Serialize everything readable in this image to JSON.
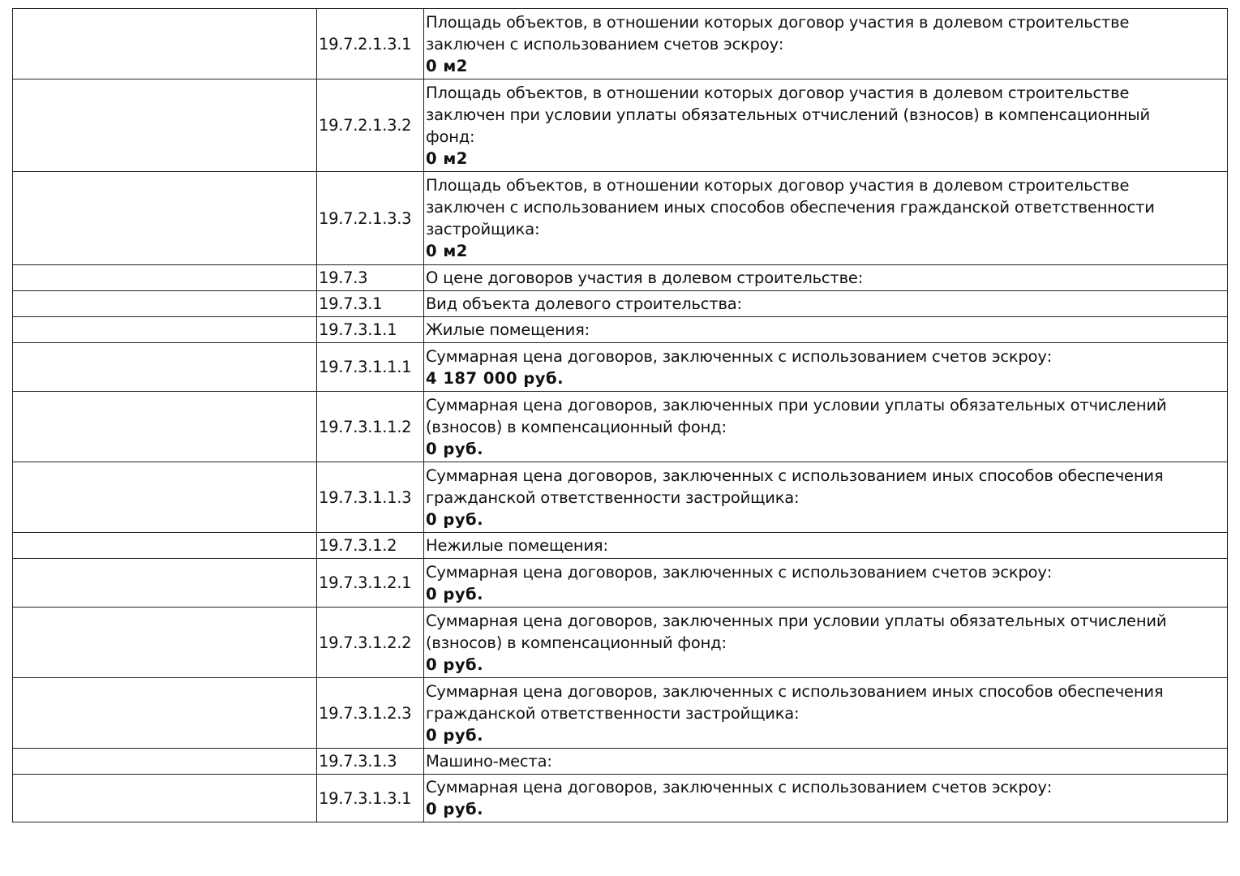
{
  "rows": [
    {
      "code": "19.7.2.1.3.1",
      "lines": [
        "Площадь объектов, в отношении которых договор участия в долевом строительстве",
        "заключен с использованием счетов эскроу:"
      ],
      "value": "0 м2"
    },
    {
      "code": "19.7.2.1.3.2",
      "lines": [
        "Площадь объектов, в отношении которых договор участия в долевом строительстве",
        "заключен при условии уплаты обязательных отчислений (взносов) в компенсационный",
        "фонд:"
      ],
      "value": "0 м2"
    },
    {
      "code": "19.7.2.1.3.3",
      "lines": [
        "Площадь объектов, в отношении которых договор участия в долевом строительстве",
        "заключен с использованием иных способов обеспечения гражданской ответственности",
        "застройщика:"
      ],
      "value": "0 м2"
    },
    {
      "code": "19.7.3",
      "lines": [
        "О цене договоров участия в долевом строительстве:"
      ],
      "value": ""
    },
    {
      "code": "19.7.3.1",
      "lines": [
        "Вид объекта долевого строительства:"
      ],
      "value": ""
    },
    {
      "code": "19.7.3.1.1",
      "lines": [
        "Жилые помещения:"
      ],
      "value": ""
    },
    {
      "code": "19.7.3.1.1.1",
      "lines": [
        "Суммарная цена договоров, заключенных с использованием счетов эскроу:"
      ],
      "value": "4 187 000 руб."
    },
    {
      "code": "19.7.3.1.1.2",
      "lines": [
        "Суммарная цена договоров, заключенных при условии уплаты обязательных отчислений",
        "(взносов) в компенсационный фонд:"
      ],
      "value": "0 руб."
    },
    {
      "code": "19.7.3.1.1.3",
      "lines": [
        "Суммарная цена договоров, заключенных с использованием иных способов обеспечения",
        "гражданской ответственности застройщика:"
      ],
      "value": "0 руб."
    },
    {
      "code": "19.7.3.1.2",
      "lines": [
        "Нежилые помещения:"
      ],
      "value": ""
    },
    {
      "code": "19.7.3.1.2.1",
      "lines": [
        "Суммарная цена договоров, заключенных с использованием счетов эскроу:"
      ],
      "value": "0 руб."
    },
    {
      "code": "19.7.3.1.2.2",
      "lines": [
        "Суммарная цена договоров, заключенных при условии уплаты обязательных отчислений",
        "(взносов) в компенсационный фонд:"
      ],
      "value": "0 руб."
    },
    {
      "code": "19.7.3.1.2.3",
      "lines": [
        "Суммарная цена договоров, заключенных с использованием иных способов обеспечения",
        "гражданской ответственности застройщика:"
      ],
      "value": "0 руб."
    },
    {
      "code": "19.7.3.1.3",
      "lines": [
        "Машино-места:"
      ],
      "value": ""
    },
    {
      "code": "19.7.3.1.3.1",
      "lines": [
        "Суммарная цена договоров, заключенных с использованием счетов эскроу:"
      ],
      "value": "0 руб."
    }
  ]
}
